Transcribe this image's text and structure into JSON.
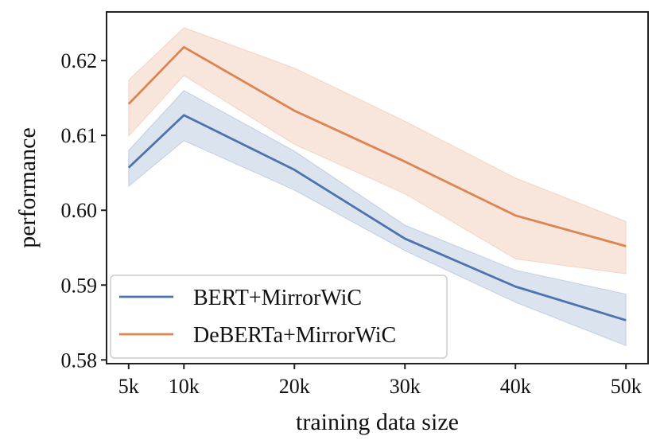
{
  "chart_data": {
    "type": "line",
    "title": "",
    "xlabel": "training data size",
    "ylabel": "performance",
    "x": [
      5,
      10,
      20,
      30,
      40,
      50
    ],
    "x_tick_labels": [
      "5k",
      "10k",
      "20k",
      "30k",
      "40k",
      "50k"
    ],
    "xlim": [
      3.0,
      52.0
    ],
    "ylim": [
      0.5795,
      0.6265
    ],
    "y_ticks": [
      0.58,
      0.59,
      0.6,
      0.61,
      0.62
    ],
    "y_tick_labels": [
      "0.58",
      "0.59",
      "0.60",
      "0.61",
      "0.62"
    ],
    "grid": false,
    "legend_position": "bottom-left",
    "series": [
      {
        "name": "BERT+MirrorWiC",
        "color": "#4c72b0",
        "values": [
          0.6057,
          0.6127,
          0.6054,
          0.5962,
          0.5898,
          0.5853
        ],
        "lower": [
          0.6032,
          0.6093,
          0.6027,
          0.5946,
          0.5877,
          0.5819
        ],
        "upper": [
          0.608,
          0.616,
          0.6079,
          0.598,
          0.592,
          0.5888
        ]
      },
      {
        "name": "DeBERTa+MirrorWiC",
        "color": "#dd8452",
        "values": [
          0.6142,
          0.6218,
          0.6133,
          0.6065,
          0.5993,
          0.5952
        ],
        "lower": [
          0.6099,
          0.618,
          0.6088,
          0.6022,
          0.5935,
          0.5915
        ],
        "upper": [
          0.6174,
          0.6244,
          0.619,
          0.6119,
          0.6043,
          0.5985
        ]
      }
    ]
  }
}
